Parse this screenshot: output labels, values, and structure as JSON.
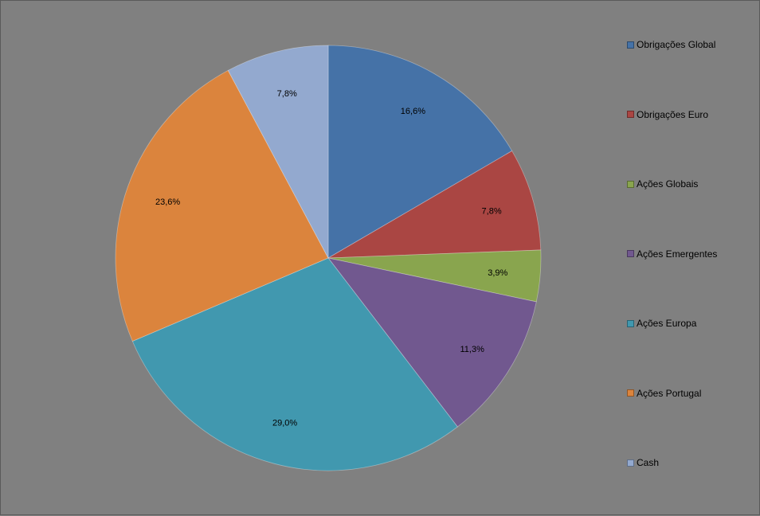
{
  "chart_data": {
    "type": "pie",
    "title": "",
    "categories": [
      "Obrigações Global",
      "Obrigações Euro",
      "Ações Globais",
      "Ações Emergentes",
      "Ações Europa",
      "Ações Portugal",
      "Cash"
    ],
    "values": [
      16.6,
      7.8,
      3.9,
      11.3,
      29.0,
      23.6,
      7.8
    ],
    "data_labels": [
      "16,6%",
      "7,8%",
      "3,9%",
      "11,3%",
      "29,0%",
      "23,6%",
      "7,8%"
    ],
    "colors": [
      "#4572A7",
      "#AA4643",
      "#89A54E",
      "#71588F",
      "#4198AF",
      "#DB843D",
      "#93A9CF"
    ],
    "start_angle": "12 o'clock",
    "direction": "clockwise",
    "legend_position": "right"
  },
  "background_color": "#808080"
}
